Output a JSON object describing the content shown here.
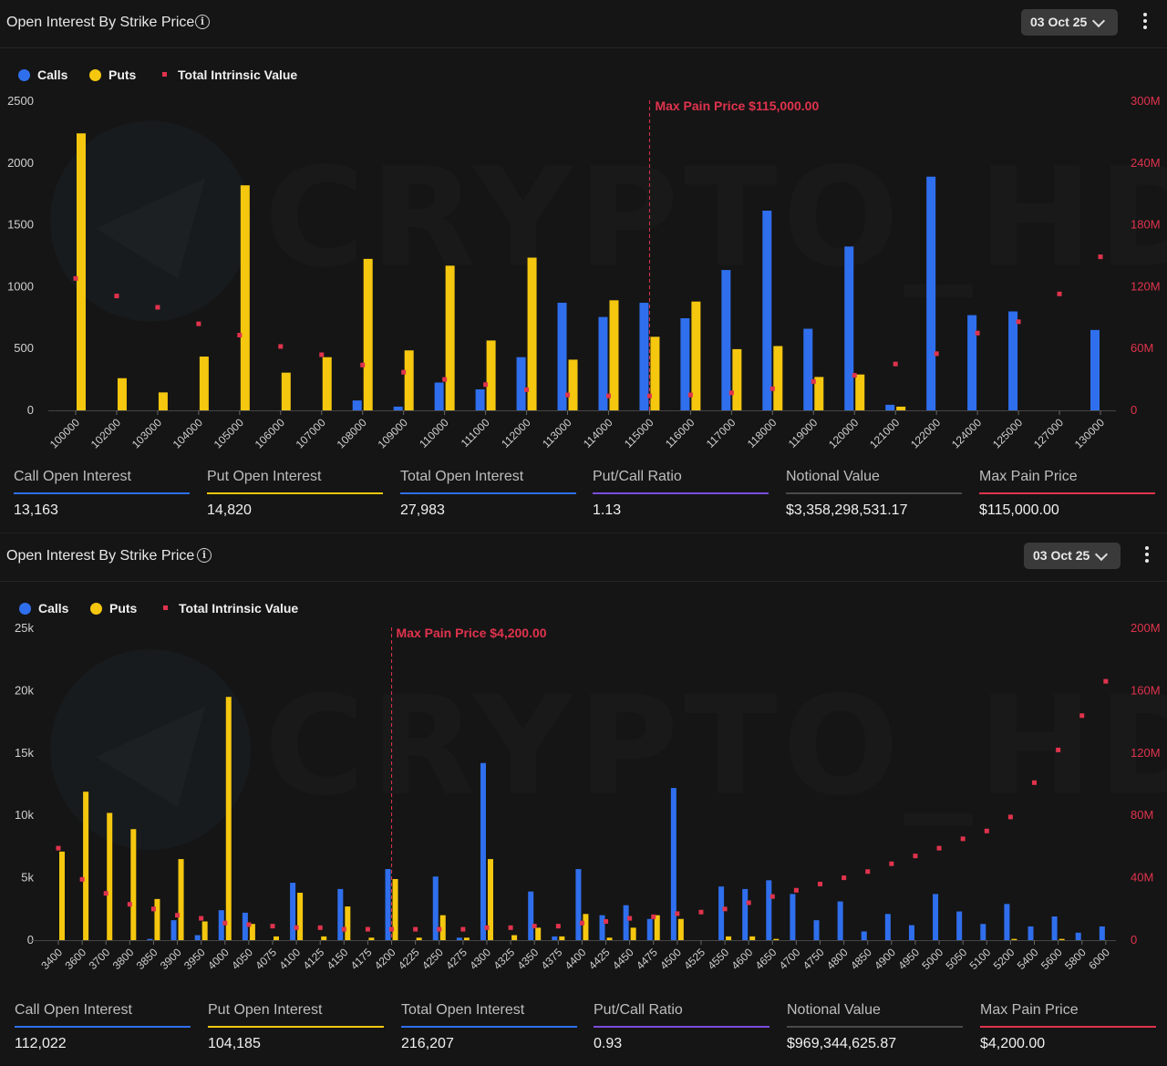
{
  "colors": {
    "calls": "#2f6fed",
    "puts": "#f5c70f",
    "intrinsic": "#e0334d",
    "maxpain": "#e0334d"
  },
  "watermark": {
    "text": "CRYPTO_HD"
  },
  "panels": [
    {
      "title": "Open Interest By Strike Price",
      "date_label": "03 Oct 25",
      "legend": {
        "calls": "Calls",
        "puts": "Puts",
        "intrinsic": "Total Intrinsic Value"
      },
      "max_pain_label": "Max Pain Price $115,000.00",
      "stats": [
        {
          "label": "Call Open Interest",
          "value": "13,163",
          "color": "#2f6fed"
        },
        {
          "label": "Put Open Interest",
          "value": "14,820",
          "color": "#f5c70f"
        },
        {
          "label": "Total Open Interest",
          "value": "27,983",
          "color": "#2f6fed"
        },
        {
          "label": "Put/Call Ratio",
          "value": "1.13",
          "color": "#7b4bdd"
        },
        {
          "label": "Notional Value",
          "value": "$3,358,298,531.17",
          "color": "#4a4a4a"
        },
        {
          "label": "Max Pain Price",
          "value": "$115,000.00",
          "color": "#e0334d"
        }
      ]
    },
    {
      "title": "Open Interest By Strike Price",
      "date_label": "03 Oct 25",
      "legend": {
        "calls": "Calls",
        "puts": "Puts",
        "intrinsic": "Total Intrinsic Value"
      },
      "max_pain_label": "Max Pain Price $4,200.00",
      "stats": [
        {
          "label": "Call Open Interest",
          "value": "112,022",
          "color": "#2f6fed"
        },
        {
          "label": "Put Open Interest",
          "value": "104,185",
          "color": "#f5c70f"
        },
        {
          "label": "Total Open Interest",
          "value": "216,207",
          "color": "#2f6fed"
        },
        {
          "label": "Put/Call Ratio",
          "value": "0.93",
          "color": "#7b4bdd"
        },
        {
          "label": "Notional Value",
          "value": "$969,344,625.87",
          "color": "#4a4a4a"
        },
        {
          "label": "Max Pain Price",
          "value": "$4,200.00",
          "color": "#e0334d"
        }
      ]
    }
  ],
  "chart_data": [
    {
      "type": "bar",
      "categories": [
        "100000",
        "102000",
        "103000",
        "104000",
        "105000",
        "106000",
        "107000",
        "108000",
        "109000",
        "110000",
        "111000",
        "112000",
        "113000",
        "114000",
        "115000",
        "116000",
        "117000",
        "118000",
        "119000",
        "120000",
        "121000",
        "122000",
        "124000",
        "125000",
        "127000",
        "130000"
      ],
      "series": [
        {
          "name": "Calls",
          "values": [
            0,
            0,
            0,
            0,
            0,
            0,
            0,
            80,
            30,
            225,
            170,
            430,
            870,
            755,
            870,
            745,
            1135,
            1615,
            660,
            1325,
            45,
            1890,
            770,
            800,
            0,
            650
          ]
        },
        {
          "name": "Puts",
          "values": [
            2240,
            260,
            145,
            435,
            1820,
            305,
            430,
            1225,
            485,
            1170,
            565,
            1235,
            410,
            890,
            595,
            880,
            495,
            520,
            270,
            290,
            30,
            0,
            0,
            0,
            0,
            0
          ]
        },
        {
          "name": "Total Intrinsic Value",
          "axis": "right",
          "values": [
            128000000,
            111000000,
            100000000,
            84000000,
            73000000,
            62000000,
            54000000,
            44000000,
            37000000,
            30000000,
            25000000,
            20000000,
            15000000,
            14000000,
            14000000,
            15000000,
            17000000,
            21000000,
            28000000,
            34000000,
            45000000,
            55000000,
            75000000,
            86000000,
            113000000,
            149000000
          ]
        }
      ],
      "ylim": [
        0,
        2500
      ],
      "yticks": [
        "0",
        "500",
        "1000",
        "1500",
        "2000",
        "2500"
      ],
      "y2lim": [
        0,
        300000000
      ],
      "y2ticks": [
        "0",
        "60M",
        "120M",
        "180M",
        "240M",
        "300M"
      ],
      "max_pain_category": "115000",
      "legend_position": "top-left"
    },
    {
      "type": "bar",
      "categories": [
        "3400",
        "3600",
        "3700",
        "3800",
        "3850",
        "3900",
        "3950",
        "4000",
        "4050",
        "4075",
        "4100",
        "4125",
        "4150",
        "4175",
        "4200",
        "4225",
        "4250",
        "4275",
        "4300",
        "4325",
        "4350",
        "4375",
        "4400",
        "4425",
        "4450",
        "4475",
        "4500",
        "4525",
        "4550",
        "4600",
        "4650",
        "4700",
        "4750",
        "4800",
        "4850",
        "4900",
        "4950",
        "5000",
        "5050",
        "5100",
        "5200",
        "5400",
        "5600",
        "5800",
        "6000"
      ],
      "series": [
        {
          "name": "Calls",
          "values": [
            0,
            0,
            0,
            0,
            100,
            1600,
            400,
            2400,
            2200,
            0,
            4600,
            0,
            4100,
            0,
            5700,
            0,
            5100,
            200,
            14200,
            0,
            3900,
            300,
            5700,
            2000,
            2800,
            1700,
            12200,
            0,
            4300,
            4100,
            4800,
            3700,
            1600,
            3100,
            700,
            2100,
            1200,
            3700,
            2300,
            1300,
            2900,
            1100,
            1900,
            600,
            1100
          ]
        },
        {
          "name": "Puts",
          "values": [
            7100,
            11900,
            10200,
            8900,
            3300,
            6500,
            1500,
            19500,
            1300,
            300,
            3800,
            300,
            2700,
            200,
            4900,
            200,
            2000,
            200,
            6500,
            400,
            1000,
            300,
            2100,
            200,
            1000,
            2000,
            1700,
            0,
            300,
            300,
            100,
            0,
            0,
            0,
            0,
            0,
            0,
            0,
            0,
            0,
            100,
            0,
            100,
            0,
            0
          ]
        },
        {
          "name": "Total Intrinsic Value",
          "axis": "right",
          "values": [
            59000000,
            39000000,
            30000000,
            23000000,
            20000000,
            16000000,
            14000000,
            11000000,
            10000000,
            9000000,
            8000000,
            8000000,
            7000000,
            7000000,
            7000000,
            7000000,
            7000000,
            7000000,
            8000000,
            8000000,
            9000000,
            9000000,
            11000000,
            12000000,
            14000000,
            15000000,
            17000000,
            18000000,
            20000000,
            24000000,
            28000000,
            32000000,
            36000000,
            40000000,
            44000000,
            49000000,
            54000000,
            59000000,
            65000000,
            70000000,
            79000000,
            101000000,
            122000000,
            144000000,
            166000000
          ]
        }
      ],
      "ylim": [
        0,
        25000
      ],
      "yticks": [
        "0",
        "5k",
        "10k",
        "15k",
        "20k",
        "25k"
      ],
      "y2lim": [
        0,
        200000000
      ],
      "y2ticks": [
        "0",
        "40M",
        "80M",
        "120M",
        "160M",
        "200M"
      ],
      "max_pain_category": "4200",
      "legend_position": "top-left"
    }
  ]
}
